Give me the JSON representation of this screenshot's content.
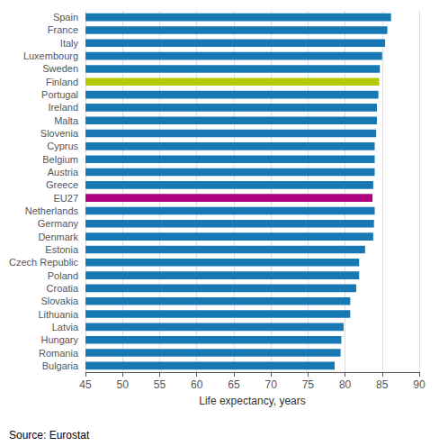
{
  "chart_data": {
    "type": "bar",
    "orientation": "horizontal",
    "categories": [
      "Spain",
      "France",
      "Italy",
      "Luxembourg",
      "Sweden",
      "Finland",
      "Portugal",
      "Ireland",
      "Malta",
      "Slovenia",
      "Cyprus",
      "Belgium",
      "Austria",
      "Greece",
      "EU27",
      "Netherlands",
      "Germany",
      "Denmark",
      "Estonia",
      "Czech Republic",
      "Poland",
      "Croatia",
      "Slovakia",
      "Lithuania",
      "Latvia",
      "Hungary",
      "Romania",
      "Bulgaria"
    ],
    "values": [
      86.2,
      85.7,
      85.4,
      85.0,
      84.7,
      84.6,
      84.5,
      84.3,
      84.3,
      84.2,
      84.0,
      84.0,
      84.0,
      83.8,
      83.7,
      84.0,
      83.9,
      83.8,
      82.7,
      81.9,
      81.9,
      81.5,
      80.7,
      80.7,
      79.8,
      79.5,
      79.4,
      78.6
    ],
    "colors": [
      "#1778b4",
      "#1778b4",
      "#1778b4",
      "#1778b4",
      "#1778b4",
      "#b5c900",
      "#1778b4",
      "#1778b4",
      "#1778b4",
      "#1778b4",
      "#1778b4",
      "#1778b4",
      "#1778b4",
      "#1778b4",
      "#ae007f",
      "#1778b4",
      "#1778b4",
      "#1778b4",
      "#1778b4",
      "#1778b4",
      "#1778b4",
      "#1778b4",
      "#1778b4",
      "#1778b4",
      "#1778b4",
      "#1778b4",
      "#1778b4",
      "#1778b4"
    ],
    "xlabel": "Life expectancy, years",
    "annotations": [
      "Source: Eurostat"
    ],
    "xlim": [
      45,
      90
    ],
    "xticks": [
      45,
      50,
      55,
      60,
      65,
      70,
      75,
      80,
      85,
      90
    ],
    "grid": true
  }
}
